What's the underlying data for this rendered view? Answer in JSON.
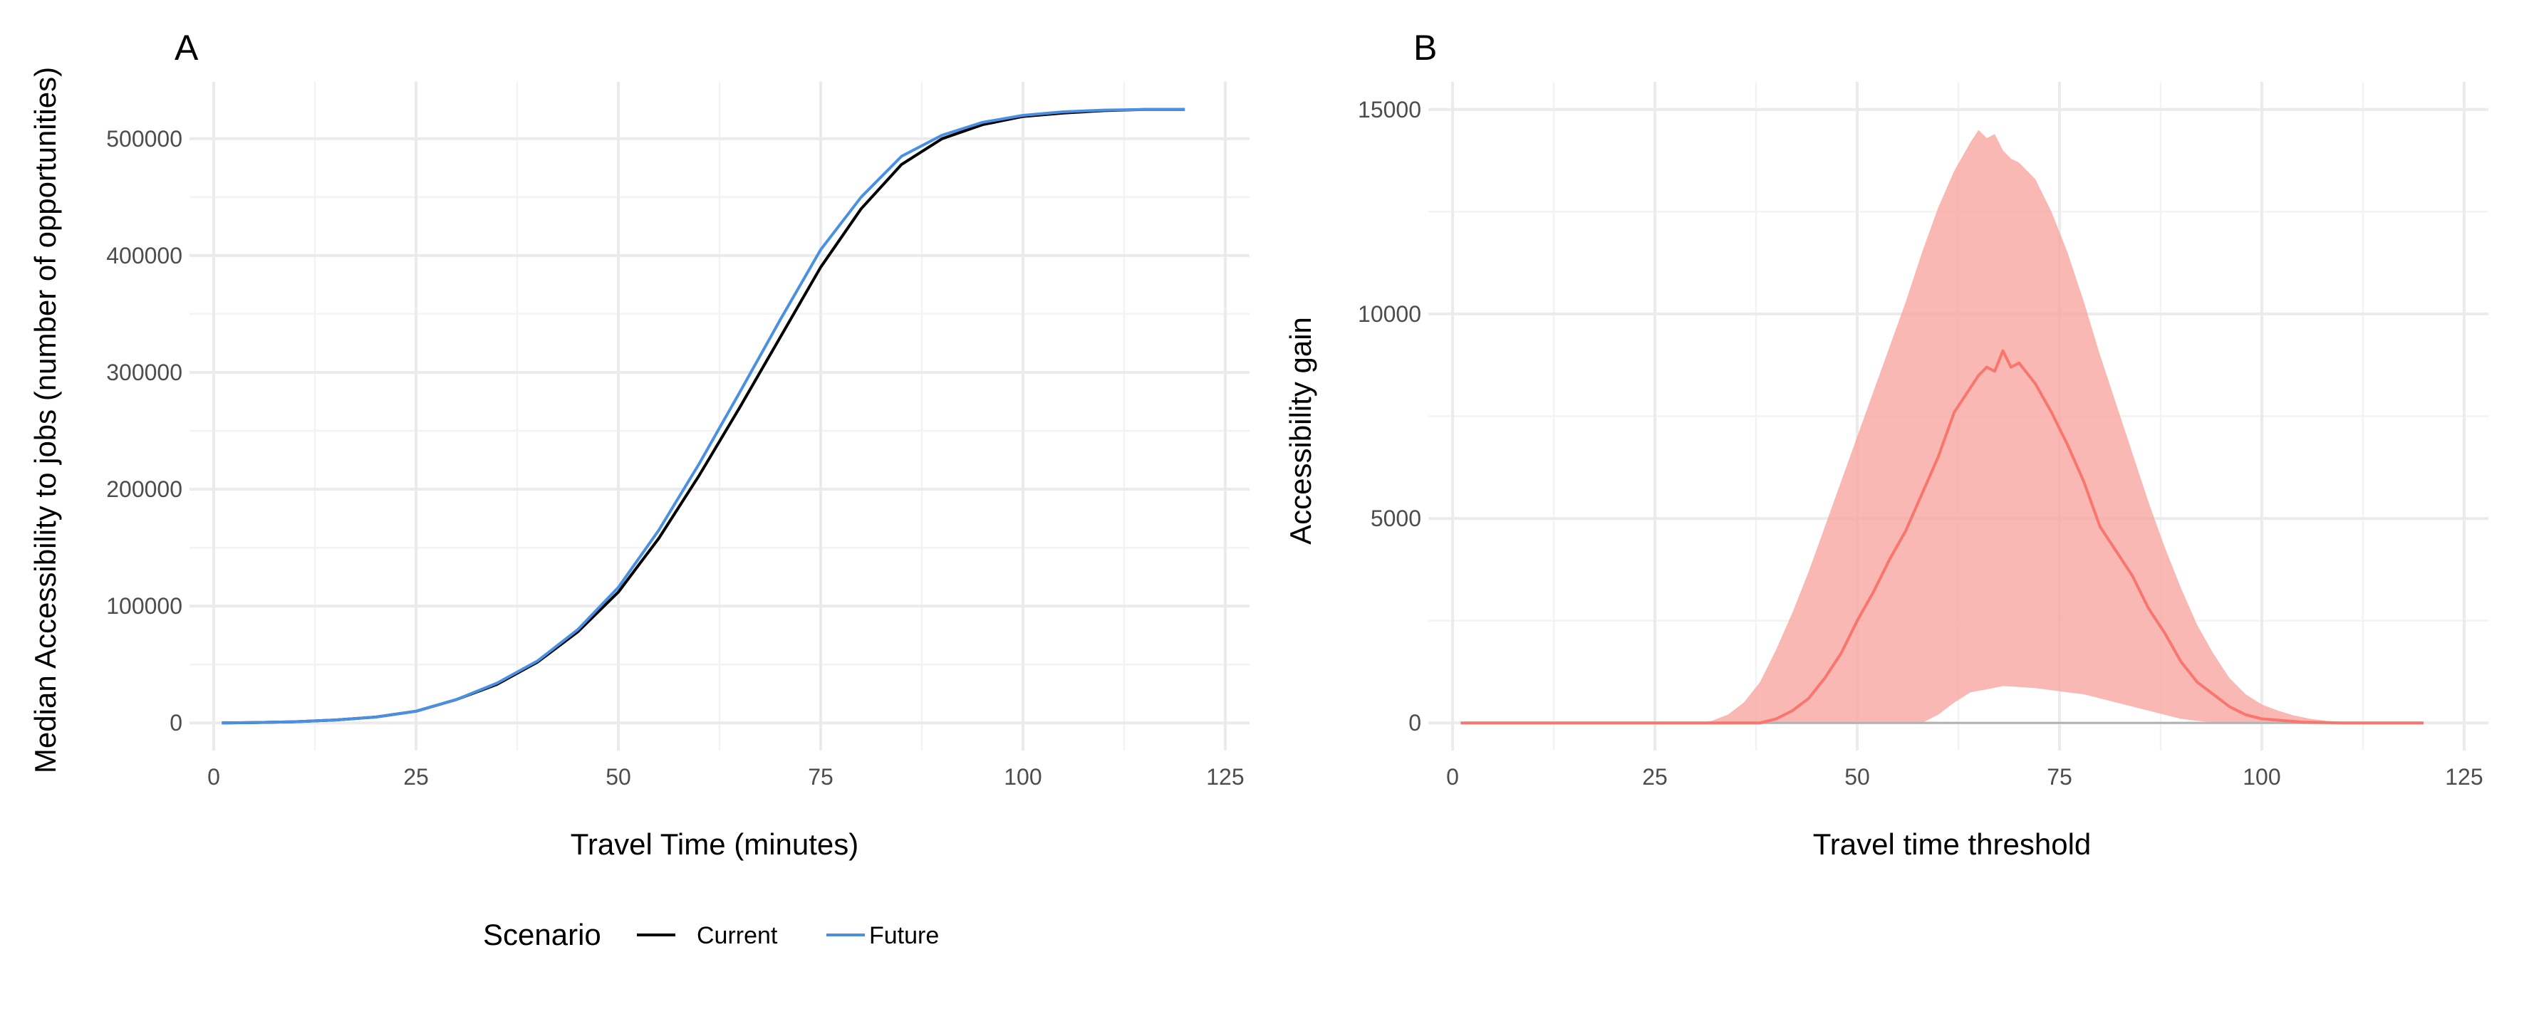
{
  "chart_data": [
    {
      "tag": "A",
      "type": "line",
      "xlabel": "Travel Time (minutes)",
      "ylabel": "Median Accessibility to jobs (number of opportunities)",
      "xlim": [
        0,
        125
      ],
      "ylim": [
        0,
        525000
      ],
      "x_ticks": [
        0,
        25,
        50,
        75,
        100,
        125
      ],
      "y_ticks": [
        0,
        100000,
        200000,
        300000,
        400000,
        500000
      ],
      "x_tick_labels": [
        "0",
        "25",
        "50",
        "75",
        "100",
        "125"
      ],
      "y_tick_labels": [
        "0",
        "100000",
        "200000",
        "300000",
        "400000",
        "500000"
      ],
      "grid": true,
      "series": [
        {
          "name": "Current",
          "color": "#000000",
          "x": [
            1,
            5,
            10,
            15,
            20,
            25,
            30,
            35,
            40,
            45,
            50,
            55,
            60,
            65,
            70,
            75,
            80,
            85,
            90,
            95,
            100,
            105,
            110,
            115,
            120
          ],
          "y": [
            0,
            300,
            1000,
            2500,
            5000,
            10000,
            20000,
            33000,
            52000,
            78000,
            112000,
            158000,
            212000,
            270000,
            330000,
            390000,
            440000,
            478000,
            500000,
            512000,
            519000,
            522000,
            524000,
            525000,
            525000
          ]
        },
        {
          "name": "Future",
          "color": "#4a90e2",
          "x": [
            1,
            5,
            10,
            15,
            20,
            25,
            30,
            35,
            40,
            45,
            50,
            55,
            60,
            65,
            70,
            75,
            80,
            85,
            90,
            95,
            100,
            105,
            110,
            115,
            120
          ],
          "y": [
            0,
            300,
            1000,
            2500,
            5000,
            10000,
            20000,
            34000,
            53000,
            80000,
            116000,
            165000,
            222000,
            283000,
            345000,
            405000,
            450000,
            485000,
            503000,
            514000,
            520000,
            523000,
            524500,
            525000,
            525000
          ]
        }
      ]
    },
    {
      "tag": "B",
      "type": "area",
      "xlabel": "Travel time threshold",
      "ylabel": "Accessibility gain",
      "xlim": [
        0,
        125
      ],
      "ylim": [
        0,
        15000
      ],
      "x_ticks": [
        0,
        25,
        50,
        75,
        100,
        125
      ],
      "y_ticks": [
        0,
        5000,
        10000,
        15000
      ],
      "x_tick_labels": [
        "0",
        "25",
        "50",
        "75",
        "100",
        "125"
      ],
      "y_tick_labels": [
        "0",
        "5000",
        "10000",
        "15000"
      ],
      "grid": true,
      "color": "#f8766d",
      "ribbon_color": "#f8a6a0",
      "zero_line_color": "#b3b3b3",
      "median": {
        "x": [
          1,
          10,
          20,
          30,
          35,
          38,
          40,
          42,
          44,
          46,
          48,
          50,
          52,
          54,
          56,
          58,
          60,
          62,
          64,
          65,
          66,
          67,
          68,
          69,
          70,
          72,
          74,
          76,
          78,
          80,
          82,
          84,
          86,
          88,
          90,
          92,
          94,
          96,
          98,
          100,
          105,
          110,
          115,
          120
        ],
        "y": [
          0,
          0,
          0,
          0,
          0,
          0,
          100,
          300,
          600,
          1100,
          1700,
          2500,
          3200,
          4000,
          4700,
          5600,
          6500,
          7600,
          8200,
          8500,
          8700,
          8600,
          9100,
          8700,
          8800,
          8300,
          7600,
          6800,
          5900,
          4800,
          4200,
          3600,
          2800,
          2200,
          1500,
          1000,
          700,
          400,
          200,
          100,
          20,
          0,
          0,
          0
        ]
      },
      "upper": {
        "x": [
          1,
          10,
          20,
          30,
          32,
          34,
          36,
          38,
          40,
          42,
          44,
          46,
          48,
          50,
          52,
          54,
          56,
          58,
          60,
          62,
          64,
          65,
          66,
          67,
          68,
          69,
          70,
          72,
          74,
          76,
          78,
          80,
          82,
          84,
          86,
          88,
          90,
          92,
          94,
          96,
          98,
          100,
          102,
          104,
          106,
          108,
          110,
          115,
          120
        ],
        "y": [
          0,
          0,
          0,
          0,
          50,
          200,
          500,
          1000,
          1800,
          2700,
          3700,
          4800,
          5900,
          7000,
          8100,
          9200,
          10300,
          11500,
          12600,
          13500,
          14200,
          14500,
          14300,
          14400,
          14000,
          13800,
          13700,
          13300,
          12500,
          11500,
          10300,
          9000,
          7800,
          6600,
          5400,
          4300,
          3300,
          2400,
          1700,
          1100,
          700,
          450,
          300,
          180,
          100,
          50,
          20,
          0,
          0
        ]
      },
      "lower": {
        "x": [
          1,
          10,
          20,
          30,
          40,
          50,
          55,
          58,
          60,
          62,
          64,
          66,
          68,
          70,
          72,
          74,
          76,
          78,
          80,
          82,
          84,
          86,
          88,
          90,
          92,
          95,
          100,
          110,
          120
        ],
        "y": [
          0,
          0,
          0,
          0,
          0,
          0,
          0,
          0,
          200,
          500,
          750,
          820,
          900,
          880,
          850,
          800,
          750,
          700,
          600,
          500,
          400,
          300,
          200,
          100,
          50,
          0,
          0,
          0,
          0
        ]
      }
    }
  ],
  "legend": {
    "title": "Scenario",
    "items": [
      {
        "label": "Current",
        "color": "#000000"
      },
      {
        "label": "Future",
        "color": "#4a90e2"
      }
    ]
  }
}
